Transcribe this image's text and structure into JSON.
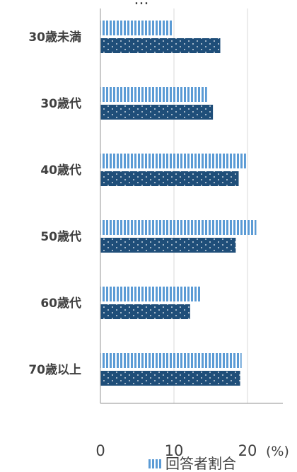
{
  "chart_data": {
    "type": "bar",
    "orientation": "horizontal",
    "title_fragment": "...",
    "categories": [
      "30歳未満",
      "30歳代",
      "40歳代",
      "50歳代",
      "60歳代",
      "70歳以上"
    ],
    "series": [
      {
        "name": "回答者割合",
        "values": [
          9.8,
          14.5,
          19.8,
          21.2,
          13.7,
          19.2
        ],
        "color": "#5b9bd5",
        "pattern": "vertical-stripes"
      },
      {
        "values": [
          16.3,
          15.3,
          18.8,
          18.4,
          12.2,
          19.0
        ],
        "color": "#1f4e79",
        "pattern": "dots"
      }
    ],
    "x_ticks": [
      0,
      10,
      20
    ],
    "x_unit": "(%)",
    "xlim": [
      0,
      25
    ],
    "grid": true,
    "legend_position": "bottom"
  },
  "colors": {
    "axis": "#a6a6a6",
    "grid": "#d9d9d9",
    "text": "#404040"
  }
}
